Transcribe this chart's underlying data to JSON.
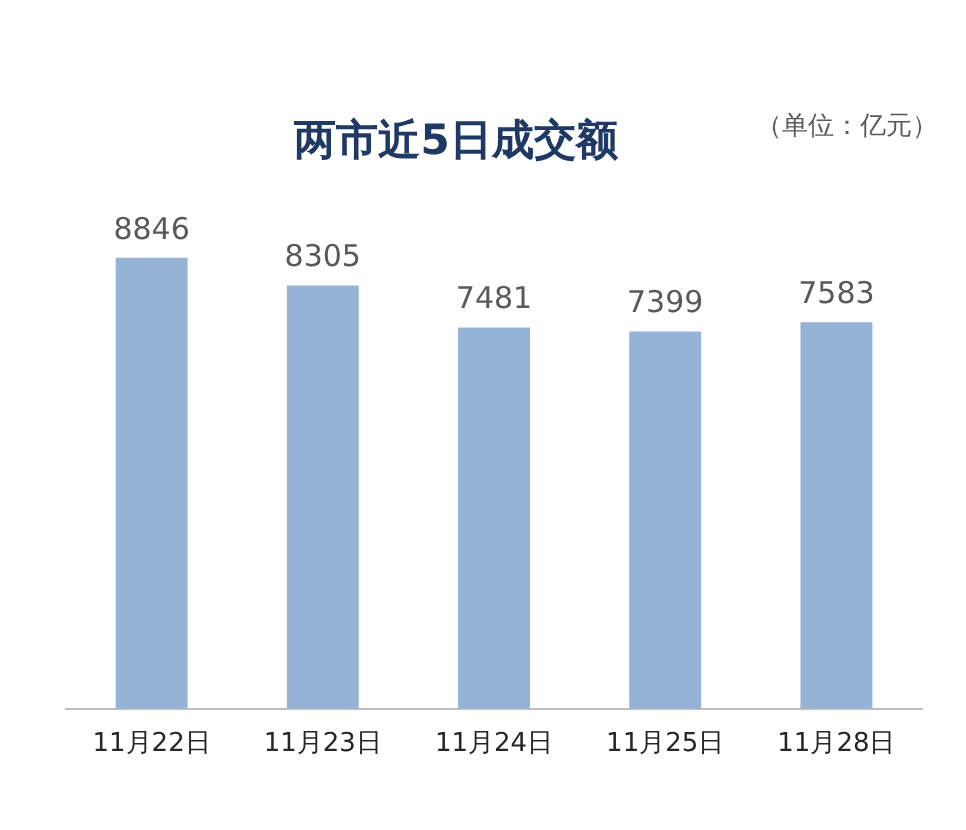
{
  "chart_data": {
    "type": "bar",
    "title": "两市近5日成交额",
    "annotations": [
      "（单位：亿元）"
    ],
    "categories": [
      "11月22日",
      "11月23日",
      "11月24日",
      "11月25日",
      "11月28日"
    ],
    "values": [
      8846,
      8305,
      7481,
      7399,
      7583
    ],
    "color": "#95b3d7",
    "relative": false,
    "data_labels": true,
    "grid": false,
    "legend": false
  }
}
